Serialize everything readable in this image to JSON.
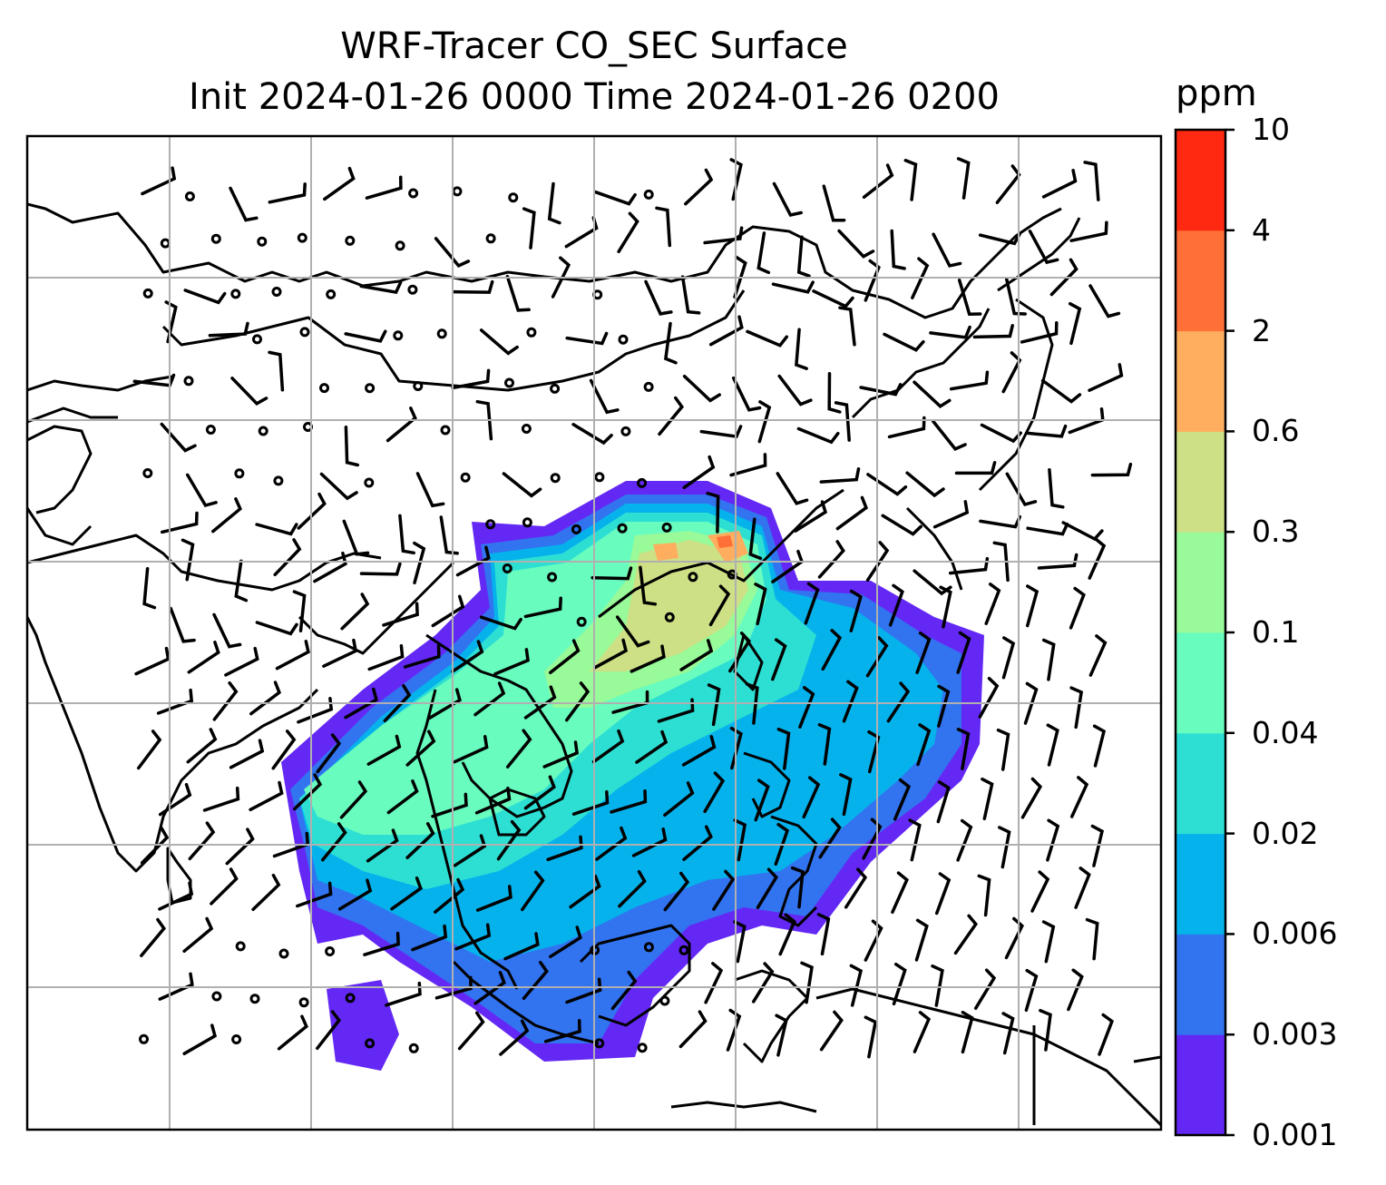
{
  "title": {
    "line1": "WRF-Tracer CO_SEC Surface",
    "line2": "Init 2024-01-26 0000 Time 2024-01-26 0200"
  },
  "colorbar": {
    "unit": "ppm",
    "ticks": [
      "0.001",
      "0.003",
      "0.006",
      "0.02",
      "0.04",
      "0.1",
      "0.3",
      "0.6",
      "2",
      "4",
      "10"
    ],
    "colors": [
      "#6428f5",
      "#3273f0",
      "#05b2ec",
      "#2ddfd3",
      "#68fcbf",
      "#98fa98",
      "#cde085",
      "#feae5e",
      "#ff6f38",
      "#ff2810"
    ]
  },
  "map": {
    "gridlines": true,
    "wind_barbs": true,
    "coastlines": true
  }
}
